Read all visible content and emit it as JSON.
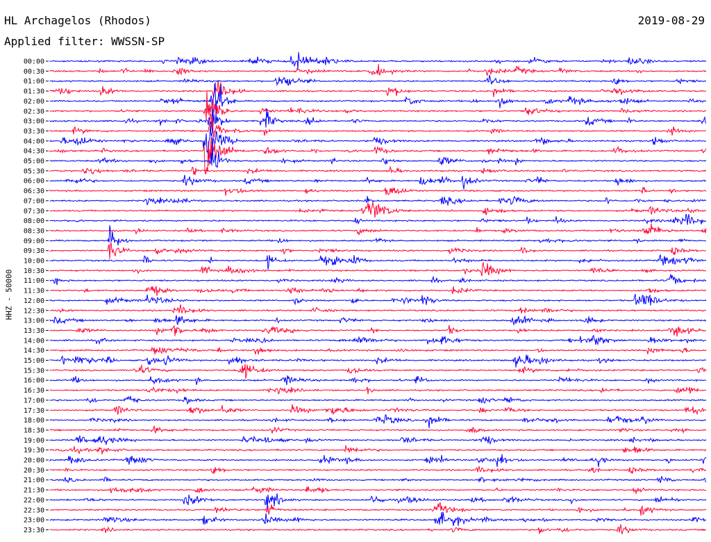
{
  "header": {
    "station": "HL Archagelos (Rhodos)",
    "filter": "Applied filter: WWSSN-SP",
    "date": "2019-08-29"
  },
  "chart_data": {
    "type": "line",
    "title": "HL Archagelos (Rhodos)",
    "subtitle": "Applied filter: WWSSN-SP",
    "date": "2019-08-29",
    "ylabel": "HHZ - 50000",
    "xlabel": "",
    "row_labels": [
      "00:00",
      "00:30",
      "01:00",
      "01:30",
      "02:00",
      "02:30",
      "03:00",
      "03:30",
      "04:00",
      "04:30",
      "05:00",
      "05:30",
      "06:00",
      "06:30",
      "07:00",
      "07:30",
      "08:00",
      "08:30",
      "09:00",
      "09:30",
      "10:00",
      "10:30",
      "11:00",
      "11:30",
      "12:00",
      "12:30",
      "13:00",
      "13:30",
      "14:00",
      "14:30",
      "15:00",
      "15:30",
      "16:00",
      "16:30",
      "17:00",
      "17:30",
      "18:00",
      "18:30",
      "19:00",
      "19:30",
      "20:00",
      "20:30",
      "21:00",
      "21:30",
      "22:00",
      "22:30",
      "23:00",
      "23:30"
    ],
    "trace_colors": [
      "#0000ff",
      "#ff0033"
    ],
    "grid": false,
    "legend": "none"
  }
}
